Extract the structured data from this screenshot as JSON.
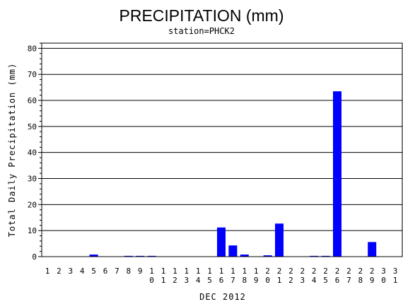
{
  "chart_data": {
    "type": "bar",
    "title": "PRECIPITATION (mm)",
    "subtitle": "station=PHCK2",
    "xlabel": "DEC 2012",
    "ylabel": "Total Daily Precipitation (mm)",
    "ylim": [
      0,
      82
    ],
    "yticks": [
      0,
      10,
      20,
      30,
      40,
      50,
      60,
      70,
      80
    ],
    "grid": true,
    "categories": [
      "1",
      "2",
      "3",
      "4",
      "5",
      "6",
      "7",
      "8",
      "9",
      "10",
      "11",
      "12",
      "13",
      "14",
      "15",
      "16",
      "17",
      "18",
      "19",
      "20",
      "21",
      "22",
      "23",
      "24",
      "25",
      "26",
      "27",
      "28",
      "29",
      "30",
      "31"
    ],
    "values": [
      0,
      0,
      0,
      0,
      0.8,
      0,
      0,
      0.3,
      0.3,
      0.3,
      0,
      0,
      0,
      0,
      0,
      11.2,
      4.3,
      0.8,
      0,
      0.5,
      12.7,
      0,
      0,
      0.3,
      0.3,
      63.5,
      0,
      0,
      5.6,
      0,
      0
    ],
    "bar_color": "#0000ff"
  }
}
